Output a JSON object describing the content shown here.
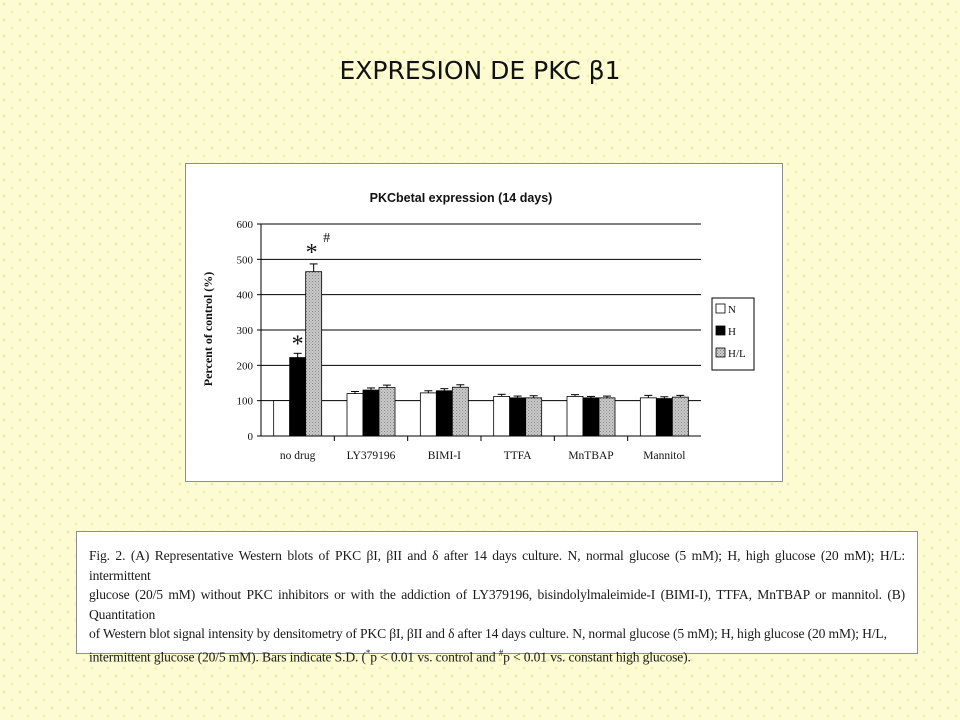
{
  "slide": {
    "title": "EXPRESION DE PKC β1"
  },
  "chart_data": {
    "type": "bar",
    "title": "PKCbetaI expression (14 days)",
    "xlabel": "",
    "ylabel": "Percent of control (%)",
    "ylim": [
      0,
      600
    ],
    "yticks": [
      0,
      100,
      200,
      300,
      400,
      500,
      600
    ],
    "grid": true,
    "legend_position": "right",
    "categories": [
      "no drug",
      "LY379196",
      "BIMI-I",
      "TTFA",
      "MnTBAP",
      "Mannitol"
    ],
    "series": [
      {
        "name": "N",
        "color": "#ffffff",
        "values": [
          100,
          120,
          122,
          112,
          112,
          108
        ],
        "errors": [
          0,
          6,
          6,
          6,
          5,
          7
        ]
      },
      {
        "name": "H",
        "color": "#000000",
        "values": [
          222,
          130,
          128,
          108,
          108,
          106
        ],
        "errors": [
          12,
          6,
          6,
          5,
          4,
          5
        ]
      },
      {
        "name": "H/L",
        "color": "#bbbbbb",
        "values": [
          465,
          137,
          138,
          108,
          108,
          110
        ],
        "errors": [
          22,
          7,
          7,
          6,
          5,
          5
        ]
      }
    ],
    "annotations": [
      {
        "text": "*",
        "category": "no drug",
        "series": "H"
      },
      {
        "text": "*",
        "category": "no drug",
        "series": "H/L"
      },
      {
        "text": "#",
        "category": "no drug",
        "series": "H/L"
      }
    ]
  },
  "caption": {
    "line1": "Fig. 2. (A) Representative Western blots of PKC βI, βII and δ after 14 days culture. N, normal glucose (5 mM); H, high glucose (20 mM); H/L: intermittent",
    "line2": "glucose (20/5 mM) without PKC inhibitors or with the addiction of LY379196, bisindolylmaleimide-I (BIMI-I), TTFA, MnTBAP or mannitol. (B) Quantitation",
    "line3": "of Western blot signal intensity by densitometry of PKC βI, βII and δ after 14 days culture. N, normal glucose (5 mM); H, high glucose (20 mM); H/L,",
    "line4a": "intermittent glucose (20/5 mM). Bars indicate S.D. (",
    "sup1": "*",
    "line4b": "p < 0.01 vs. control and ",
    "sup2": "#",
    "line4c": "p < 0.01 vs. constant high glucose)."
  }
}
